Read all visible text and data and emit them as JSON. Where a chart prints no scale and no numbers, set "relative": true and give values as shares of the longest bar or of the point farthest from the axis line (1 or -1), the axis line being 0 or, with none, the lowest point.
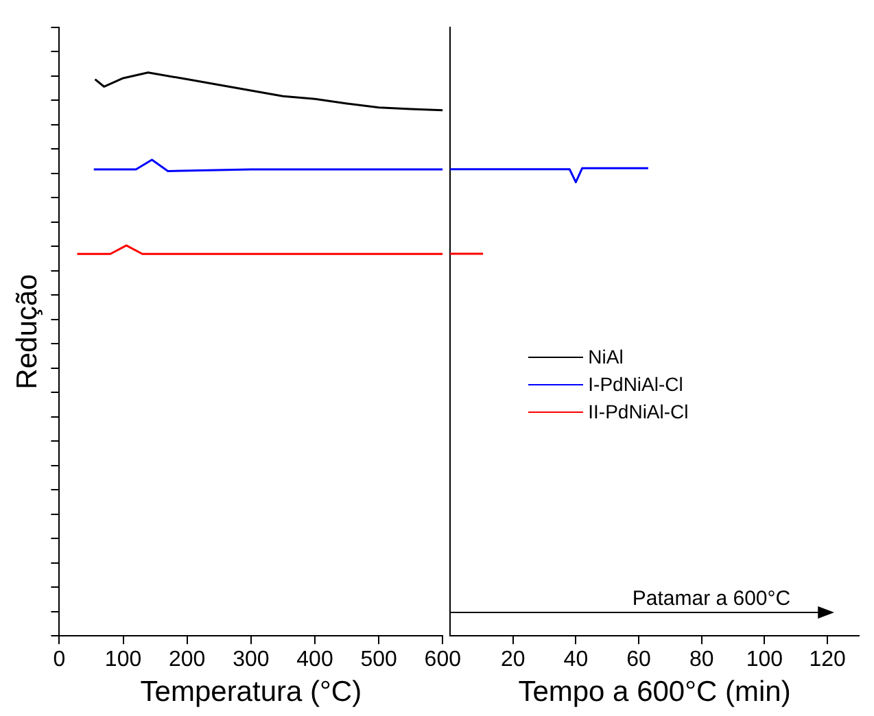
{
  "chart_data": [
    {
      "type": "line",
      "ylabel": "Redução",
      "xlabel": "Temperatura (°C)",
      "relative": true,
      "tick_labels": "x",
      "legend": "right",
      "grid": false,
      "marker": "none",
      "line_style": "solid",
      "xlim": [
        0,
        600
      ],
      "xticks": [
        0,
        100,
        200,
        300,
        400,
        500,
        600
      ],
      "series": [
        {
          "name": "NiAl",
          "color": "#000000",
          "x": [
            56,
            70,
            100,
            139,
            200,
            250,
            300,
            350,
            400,
            450,
            500,
            550,
            600
          ],
          "values": [
            0.988,
            0.975,
            0.99,
            1,
            0.988,
            0.978,
            0.968,
            0.958,
            0.953,
            0.945,
            0.938,
            0.935,
            0.933
          ]
        },
        {
          "name": "I-PdNiAl-Cl",
          "color": "#0000ff",
          "x": [
            54,
            120,
            145,
            170,
            300,
            450,
            600
          ],
          "values": [
            0.828,
            0.828,
            0.845,
            0.825,
            0.828,
            0.828,
            0.828
          ]
        },
        {
          "name": "II-PdNiAl-Cl",
          "color": "#ff0000",
          "x": [
            28,
            80,
            105,
            130,
            600
          ],
          "values": [
            0.678,
            0.678,
            0.693,
            0.678,
            0.678
          ]
        }
      ]
    },
    {
      "type": "line",
      "xlabel": "Tempo a 600°C (min)",
      "relative": true,
      "tick_labels": "x",
      "grid": false,
      "marker": "none",
      "line_style": "solid",
      "xlim": [
        0,
        130
      ],
      "xticks": [
        20,
        40,
        60,
        80,
        100,
        120
      ],
      "annotations": [
        "Patamar a 600°C"
      ],
      "series": [
        {
          "color": "#0000ff",
          "x": [
            0,
            38,
            40,
            42,
            63
          ],
          "values": [
            0.998,
            0.998,
            0.97,
            1,
            1
          ]
        },
        {
          "color": "#ff0000",
          "x": [
            0,
            10.5
          ],
          "values": [
            0.817,
            0.817
          ]
        }
      ]
    }
  ]
}
